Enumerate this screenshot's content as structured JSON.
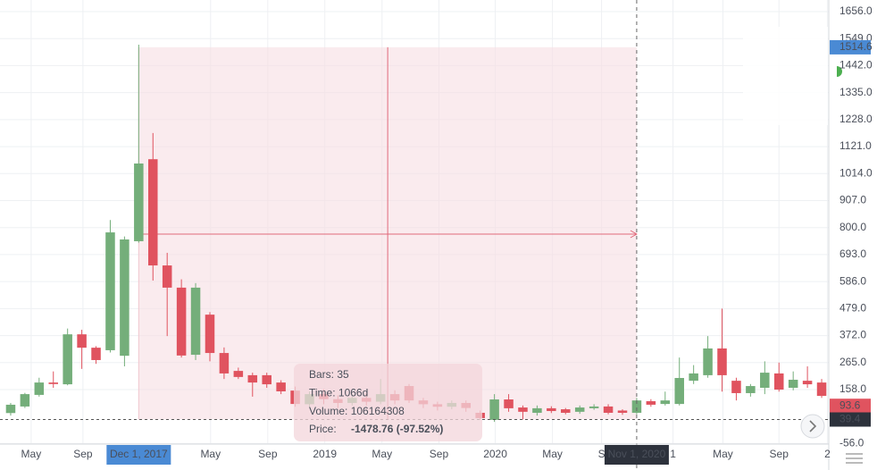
{
  "chart_data": {
    "type": "candlestick",
    "categories": [
      null,
      null,
      null,
      null,
      null,
      null,
      null,
      null,
      null,
      null,
      null,
      null,
      null,
      null,
      null,
      null,
      null,
      null,
      null,
      null,
      null,
      null,
      null,
      null,
      null,
      null,
      null,
      null,
      null,
      null,
      null,
      null,
      null,
      null,
      null,
      null,
      null,
      null,
      null,
      null,
      null,
      null,
      null,
      null,
      null,
      null,
      null,
      null,
      null,
      null,
      null,
      null,
      null,
      null,
      null,
      null,
      null,
      null
    ],
    "open": [
      65,
      91,
      137,
      186,
      179,
      377,
      324,
      314,
      292,
      746,
      1071,
      650,
      562,
      296,
      455,
      303,
      232,
      215,
      215,
      186,
      154,
      100,
      140,
      120,
      105,
      125,
      110,
      140,
      172,
      115,
      100,
      90,
      105,
      66,
      38,
      119,
      87,
      66,
      84,
      80,
      70,
      84,
      91,
      75,
      66,
      112,
      101,
      101,
      193,
      215,
      321,
      193,
      144,
      165,
      222,
      165,
      193,
      186
    ],
    "high": [
      105,
      145,
      205,
      230,
      400,
      395,
      330,
      830,
      765,
      1525,
      1175,
      700,
      595,
      580,
      465,
      325,
      245,
      225,
      225,
      195,
      170,
      150,
      160,
      135,
      140,
      145,
      200,
      155,
      180,
      125,
      110,
      115,
      115,
      75,
      140,
      140,
      95,
      95,
      92,
      85,
      95,
      100,
      100,
      80,
      125,
      120,
      150,
      285,
      255,
      370,
      479,
      205,
      180,
      270,
      265,
      230,
      250,
      200
    ],
    "low": [
      55,
      85,
      130,
      165,
      175,
      240,
      260,
      305,
      250,
      740,
      590,
      370,
      285,
      275,
      270,
      200,
      200,
      130,
      165,
      140,
      90,
      90,
      100,
      85,
      95,
      95,
      100,
      100,
      105,
      85,
      75,
      80,
      70,
      40,
      30,
      70,
      40,
      55,
      65,
      60,
      62,
      78,
      60,
      58,
      60,
      90,
      95,
      95,
      180,
      205,
      150,
      115,
      130,
      140,
      150,
      155,
      165,
      125
    ],
    "close": [
      98,
      140,
      186,
      180,
      377,
      324,
      275,
      781,
      753,
      1054,
      650,
      562,
      293,
      562,
      303,
      222,
      208,
      186,
      179,
      151,
      101,
      140,
      120,
      105,
      125,
      110,
      140,
      115,
      115,
      100,
      90,
      105,
      85,
      45,
      119,
      84,
      70,
      84,
      73,
      66,
      87,
      91,
      66,
      66,
      115,
      98,
      115,
      204,
      222,
      321,
      215,
      144,
      172,
      225,
      158,
      197,
      179,
      133
    ],
    "up_color": "#74ae7a",
    "down_color": "#e0535f",
    "ylim": [
      -58,
      1702
    ],
    "xlim": [
      -0.75,
      57.5
    ],
    "yticks": [
      {
        "value": 1656,
        "label": "1656.0"
      },
      {
        "value": 1549,
        "label": "1549.0"
      },
      {
        "value": 1442,
        "label": "1442.0"
      },
      {
        "value": 1335,
        "label": "1335.0"
      },
      {
        "value": 1228,
        "label": "1228.0"
      },
      {
        "value": 1121,
        "label": "1121.0"
      },
      {
        "value": 1014,
        "label": "1014.0"
      },
      {
        "value": 907,
        "label": "907.0"
      },
      {
        "value": 800,
        "label": "800.0"
      },
      {
        "value": 693,
        "label": "693.0"
      },
      {
        "value": 586,
        "label": "586.0"
      },
      {
        "value": 479,
        "label": "479.0"
      },
      {
        "value": 372,
        "label": "372.0"
      },
      {
        "value": 265,
        "label": "265.0"
      },
      {
        "value": 158,
        "label": "158.0"
      },
      {
        "value": -56,
        "label": "-56.0"
      }
    ],
    "xticks": [
      {
        "value": 1.44,
        "label": "May"
      },
      {
        "value": 5.08,
        "label": "Sep"
      },
      {
        "value": 14.05,
        "label": "May"
      },
      {
        "value": 18.07,
        "label": "Sep"
      },
      {
        "value": 22.08,
        "label": "2019"
      },
      {
        "value": 26.1,
        "label": "May"
      },
      {
        "value": 30.1,
        "label": "Sep"
      },
      {
        "value": 34.06,
        "label": "2020"
      },
      {
        "value": 38.08,
        "label": "May"
      },
      {
        "value": 41.53,
        "label": "S"
      },
      {
        "value": 46.55,
        "label": "1"
      },
      {
        "value": 50.06,
        "label": "May"
      },
      {
        "value": 54.0,
        "label": "Sep"
      },
      {
        "value": 57.4,
        "label": "2"
      }
    ],
    "grid": true,
    "cursor_labels": [
      {
        "value": 9,
        "label": "Dec 1, 2017",
        "color": "#4a8ad4"
      },
      {
        "value": 44,
        "label": "Nov 1, 2020",
        "color": "#2d323c"
      }
    ],
    "price_labels": [
      {
        "value": 1514.6,
        "label": "1514.6",
        "color": "#4a8ad4"
      },
      {
        "value": 93.6,
        "label": "93.6",
        "color": "#e0535f"
      },
      {
        "value": 39.4,
        "label": "39.4",
        "color": "#2d323c"
      }
    ],
    "measure": {
      "bars": "Bars: 35",
      "time": "Time: 1066d",
      "volume": "Volume: 106164308",
      "price_label": "Price:",
      "price": "-1478.76 (-97.52%)"
    }
  }
}
